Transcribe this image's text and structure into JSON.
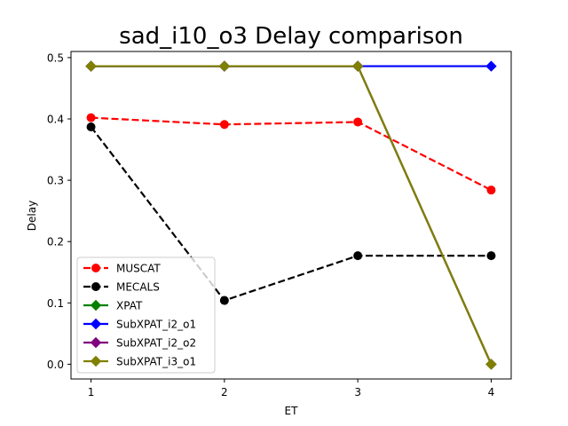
{
  "chart_data": {
    "type": "line",
    "title": "sad_i10_o3 Delay comparison",
    "xlabel": "ET",
    "ylabel": "Delay",
    "x": [
      1,
      2,
      3,
      4
    ],
    "xticks": [
      "1",
      "2",
      "3",
      "4"
    ],
    "yticks": [
      "0.0",
      "0.1",
      "0.2",
      "0.3",
      "0.4",
      "0.5"
    ],
    "xlim": [
      0.85,
      4.15
    ],
    "ylim": [
      -0.024,
      0.51
    ],
    "grid": false,
    "legend_position": "lower-left",
    "series": [
      {
        "name": "MUSCAT",
        "values": [
          0.402,
          0.391,
          0.395,
          0.284
        ],
        "color": "#ff0000",
        "dashed": true,
        "marker": "circle"
      },
      {
        "name": "MECALS",
        "values": [
          0.387,
          0.104,
          0.177,
          0.177
        ],
        "color": "#000000",
        "dashed": true,
        "marker": "circle"
      },
      {
        "name": "XPAT",
        "values": [
          0.486,
          0.486,
          0.486,
          0.0
        ],
        "color": "#008000",
        "dashed": false,
        "marker": "diamond"
      },
      {
        "name": "SubXPAT_i2_o1",
        "values": [
          0.486,
          0.486,
          0.486,
          0.486
        ],
        "color": "#0000ff",
        "dashed": false,
        "marker": "diamond"
      },
      {
        "name": "SubXPAT_i2_o2",
        "values": [
          0.486,
          0.486,
          0.486,
          0.0
        ],
        "color": "#800080",
        "dashed": false,
        "marker": "diamond"
      },
      {
        "name": "SubXPAT_i3_o1",
        "values": [
          0.486,
          0.486,
          0.486,
          0.0
        ],
        "color": "#808000",
        "dashed": false,
        "marker": "diamond"
      }
    ]
  }
}
